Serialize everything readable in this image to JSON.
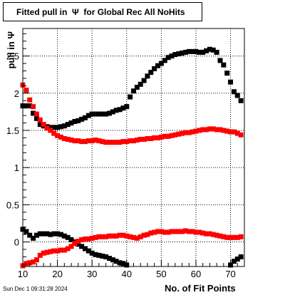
{
  "title": "Fitted pull in  Ψ  for Global Rec All NoHits",
  "timestamp": "Sun Dec  1 09:31:28 2024",
  "chart_data": {
    "type": "scatter",
    "title": "Fitted pull in  Ψ  for Global Rec All NoHits",
    "xlabel": "No. of Fit Points",
    "ylabel": "pull in  Ψ",
    "xlim": [
      10,
      74
    ],
    "ylim": [
      -0.33,
      2.87
    ],
    "grid": true,
    "xticks": [
      10,
      20,
      30,
      40,
      50,
      60,
      70
    ],
    "yticks": [
      0,
      0.5,
      1,
      1.5,
      2,
      2.5
    ],
    "xtick_labels": [
      "10",
      "20",
      "30",
      "40",
      "50",
      "60",
      "70"
    ],
    "ytick_labels": [
      "0",
      "0.5",
      "1",
      "1.5",
      "2",
      "2.5"
    ],
    "series": [
      {
        "color": "#000000",
        "x": [
          10,
          11,
          12,
          13,
          14,
          15,
          16,
          17,
          18,
          19,
          20,
          21,
          22,
          23,
          24,
          25,
          26,
          27,
          28,
          29,
          30,
          31,
          32,
          33,
          34,
          35,
          36,
          37,
          38,
          39,
          40,
          41,
          42,
          43,
          44,
          45,
          46,
          47,
          48,
          49,
          50,
          51,
          52,
          53,
          54,
          55,
          56,
          57,
          58,
          59,
          60,
          61,
          62,
          63,
          64,
          65,
          66,
          67,
          68,
          69,
          70,
          71,
          72,
          73
        ],
        "y": [
          1.83,
          1.83,
          1.83,
          1.73,
          1.66,
          1.58,
          1.56,
          1.55,
          1.54,
          1.54,
          1.54,
          1.55,
          1.56,
          1.58,
          1.6,
          1.62,
          1.63,
          1.65,
          1.67,
          1.7,
          1.72,
          1.72,
          1.72,
          1.72,
          1.72,
          1.73,
          1.75,
          1.77,
          1.78,
          1.8,
          1.82,
          1.95,
          2.03,
          2.08,
          2.12,
          2.17,
          2.23,
          2.28,
          2.33,
          2.37,
          2.4,
          2.44,
          2.48,
          2.5,
          2.52,
          2.53,
          2.54,
          2.55,
          2.56,
          2.56,
          2.56,
          2.55,
          2.55,
          2.57,
          2.59,
          2.58,
          2.55,
          2.44,
          2.38,
          2.27,
          2.15,
          2.02,
          1.97,
          1.9
        ]
      },
      {
        "color": "#ff0000",
        "x": [
          10,
          11,
          12,
          13,
          14,
          15,
          16,
          17,
          18,
          19,
          20,
          21,
          22,
          23,
          24,
          25,
          26,
          27,
          28,
          29,
          30,
          31,
          32,
          33,
          34,
          35,
          36,
          37,
          38,
          39,
          40,
          41,
          42,
          43,
          44,
          45,
          46,
          47,
          48,
          49,
          50,
          51,
          52,
          53,
          54,
          55,
          56,
          57,
          58,
          59,
          60,
          61,
          62,
          63,
          64,
          65,
          66,
          67,
          68,
          69,
          70,
          71,
          72,
          73
        ],
        "y": [
          2.11,
          2.04,
          1.91,
          1.82,
          1.72,
          1.64,
          1.58,
          1.53,
          1.5,
          1.46,
          1.43,
          1.41,
          1.39,
          1.38,
          1.37,
          1.36,
          1.36,
          1.35,
          1.35,
          1.36,
          1.36,
          1.37,
          1.36,
          1.35,
          1.34,
          1.34,
          1.34,
          1.34,
          1.34,
          1.35,
          1.35,
          1.36,
          1.36,
          1.37,
          1.38,
          1.38,
          1.39,
          1.39,
          1.4,
          1.4,
          1.41,
          1.42,
          1.42,
          1.43,
          1.44,
          1.45,
          1.46,
          1.47,
          1.47,
          1.48,
          1.49,
          1.5,
          1.51,
          1.51,
          1.52,
          1.52,
          1.51,
          1.51,
          1.5,
          1.49,
          1.48,
          1.48,
          1.46,
          1.44
        ]
      },
      {
        "color": "#000000",
        "x": [
          10,
          11,
          12,
          13,
          14,
          15,
          16,
          17,
          18,
          19,
          20,
          21,
          22,
          23,
          24,
          25,
          26,
          27,
          28,
          29,
          30,
          31,
          32,
          33,
          34,
          35,
          36,
          37,
          38,
          39,
          40,
          41,
          69,
          70,
          71,
          72,
          73
        ],
        "y": [
          0.17,
          0.14,
          0.09,
          0.05,
          0.09,
          0.11,
          0.11,
          0.11,
          0.1,
          0.11,
          0.11,
          0.1,
          0.08,
          0.06,
          0.03,
          0.0,
          -0.03,
          -0.06,
          -0.09,
          -0.12,
          -0.15,
          -0.17,
          -0.18,
          -0.19,
          -0.2,
          -0.22,
          -0.24,
          -0.26,
          -0.28,
          -0.29,
          -0.31,
          -0.35,
          -0.36,
          -0.31,
          -0.26,
          -0.23,
          -0.2
        ]
      },
      {
        "color": "#ff0000",
        "x": [
          10,
          11,
          12,
          13,
          14,
          15,
          16,
          17,
          18,
          19,
          20,
          21,
          22,
          23,
          24,
          25,
          26,
          27,
          28,
          29,
          30,
          31,
          32,
          33,
          34,
          35,
          36,
          37,
          38,
          39,
          40,
          41,
          42,
          43,
          44,
          45,
          46,
          47,
          48,
          49,
          50,
          51,
          52,
          53,
          54,
          55,
          56,
          57,
          58,
          59,
          60,
          61,
          62,
          63,
          64,
          65,
          66,
          67,
          68,
          69,
          70,
          71,
          72,
          73
        ],
        "y": [
          -0.32,
          -0.29,
          -0.28,
          -0.27,
          -0.24,
          -0.18,
          -0.15,
          -0.14,
          -0.13,
          -0.12,
          -0.12,
          -0.11,
          -0.11,
          -0.09,
          -0.06,
          -0.02,
          0.01,
          0.03,
          0.04,
          0.04,
          0.05,
          0.06,
          0.07,
          0.07,
          0.07,
          0.08,
          0.08,
          0.08,
          0.09,
          0.09,
          0.08,
          0.07,
          0.06,
          0.05,
          0.07,
          0.09,
          0.1,
          0.12,
          0.13,
          0.14,
          0.14,
          0.13,
          0.13,
          0.14,
          0.14,
          0.14,
          0.14,
          0.15,
          0.14,
          0.14,
          0.13,
          0.13,
          0.12,
          0.11,
          0.11,
          0.1,
          0.09,
          0.08,
          0.07,
          0.06,
          0.06,
          0.06,
          0.06,
          0.07
        ]
      }
    ]
  }
}
